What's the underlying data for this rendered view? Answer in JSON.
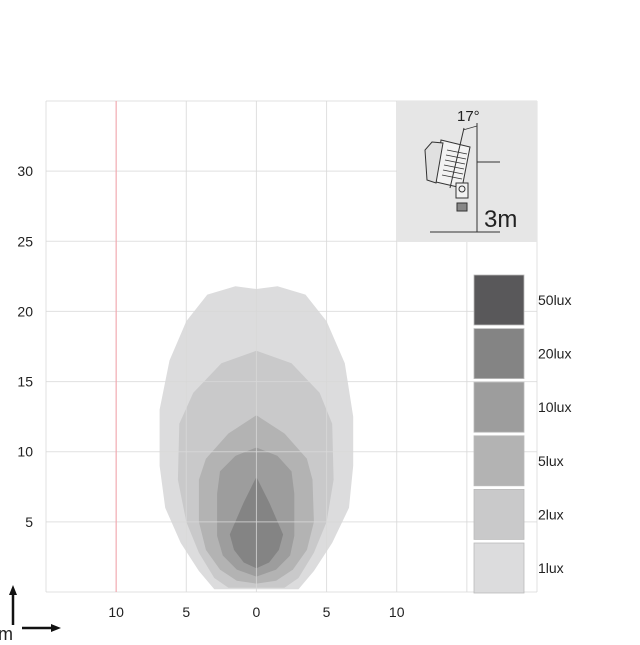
{
  "chart_data": {
    "type": "area",
    "subtype": "isolux-contour",
    "x_tick_labels": [
      "10",
      "5",
      "0",
      "5",
      "10"
    ],
    "x_tick_values": [
      -10,
      -5,
      0,
      5,
      10
    ],
    "y_tick_labels": [
      "5",
      "10",
      "15",
      "20",
      "25",
      "30"
    ],
    "y_tick_values": [
      5,
      10,
      15,
      20,
      25,
      30
    ],
    "xlim": [
      -15,
      20
    ],
    "ylim": [
      0,
      35
    ],
    "grid": true,
    "axis_unit_label": "m",
    "reference_line_x": -10,
    "reference_line_color": "#f4a0a8",
    "legend_position": "right",
    "legend": [
      {
        "label": "50lux",
        "color": "#59585a"
      },
      {
        "label": "20lux",
        "color": "#848484"
      },
      {
        "label": "10lux",
        "color": "#9d9d9d"
      },
      {
        "label": "5lux",
        "color": "#b3b3b3"
      },
      {
        "label": "2lux",
        "color": "#c9c9ca"
      },
      {
        "label": "1lux",
        "color": "#dcdcdd"
      }
    ],
    "contours": [
      {
        "level": "1lux",
        "color": "#dcdcdd",
        "points": [
          [
            0,
            21.6
          ],
          [
            -1.5,
            21.8
          ],
          [
            -3.5,
            21.2
          ],
          [
            -5,
            19.3
          ],
          [
            -6.2,
            16.5
          ],
          [
            -6.9,
            13
          ],
          [
            -6.9,
            9
          ],
          [
            -6.5,
            6
          ],
          [
            -5.4,
            3.5
          ],
          [
            -4.1,
            1.5
          ],
          [
            -3,
            0.2
          ],
          [
            3,
            0.2
          ],
          [
            4.1,
            1.5
          ],
          [
            5.4,
            3.5
          ],
          [
            6.6,
            6
          ],
          [
            6.9,
            9
          ],
          [
            6.9,
            12.5
          ],
          [
            6.3,
            16.3
          ],
          [
            5,
            19.3
          ],
          [
            3.5,
            21.2
          ],
          [
            1.5,
            21.8
          ]
        ]
      },
      {
        "level": "2lux",
        "color": "#c9c9ca",
        "points": [
          [
            0,
            17.2
          ],
          [
            -2.5,
            16.3
          ],
          [
            -4.5,
            14.2
          ],
          [
            -5.5,
            12
          ],
          [
            -5.6,
            8
          ],
          [
            -5,
            5
          ],
          [
            -4.1,
            2.8
          ],
          [
            -3,
            1
          ],
          [
            -2,
            0.3
          ],
          [
            2,
            0.3
          ],
          [
            3,
            1
          ],
          [
            4.1,
            2.8
          ],
          [
            5,
            5
          ],
          [
            5.5,
            8
          ],
          [
            5.4,
            12
          ],
          [
            4.5,
            14.2
          ],
          [
            2.5,
            16.3
          ]
        ]
      },
      {
        "level": "5lux",
        "color": "#b3b3b3",
        "points": [
          [
            0,
            12.6
          ],
          [
            -2,
            11.3
          ],
          [
            -3.6,
            9.5
          ],
          [
            -4.1,
            8
          ],
          [
            -4.1,
            5
          ],
          [
            -3.6,
            3
          ],
          [
            -2.6,
            1.6
          ],
          [
            -1.4,
            0.8
          ],
          [
            0,
            0.6
          ],
          [
            1.4,
            0.8
          ],
          [
            2.6,
            1.6
          ],
          [
            3.6,
            3
          ],
          [
            4.1,
            5
          ],
          [
            4,
            8
          ],
          [
            3.6,
            9.5
          ],
          [
            2,
            11.3
          ]
        ]
      },
      {
        "level": "10lux",
        "color": "#9d9d9d",
        "points": [
          [
            0,
            10.3
          ],
          [
            -1.5,
            9.7
          ],
          [
            -2.6,
            8.6
          ],
          [
            -2.8,
            7
          ],
          [
            -2.8,
            4
          ],
          [
            -2.4,
            2.6
          ],
          [
            -1.4,
            1.6
          ],
          [
            0,
            1.1
          ],
          [
            1.4,
            1.6
          ],
          [
            2.4,
            2.6
          ],
          [
            2.7,
            4
          ],
          [
            2.7,
            7
          ],
          [
            2.5,
            8.6
          ],
          [
            1.5,
            9.7
          ]
        ]
      },
      {
        "level": "20lux",
        "color": "#848484",
        "points": [
          [
            0,
            8.2
          ],
          [
            -0.9,
            6.4
          ],
          [
            -1.9,
            4.1
          ],
          [
            -1.6,
            3
          ],
          [
            -0.9,
            2.1
          ],
          [
            0,
            1.7
          ],
          [
            0.9,
            2.1
          ],
          [
            1.6,
            3
          ],
          [
            1.9,
            4.1
          ],
          [
            0.9,
            6.4
          ]
        ]
      }
    ]
  },
  "inset": {
    "angle_label": "17°",
    "height_label": "3m"
  }
}
